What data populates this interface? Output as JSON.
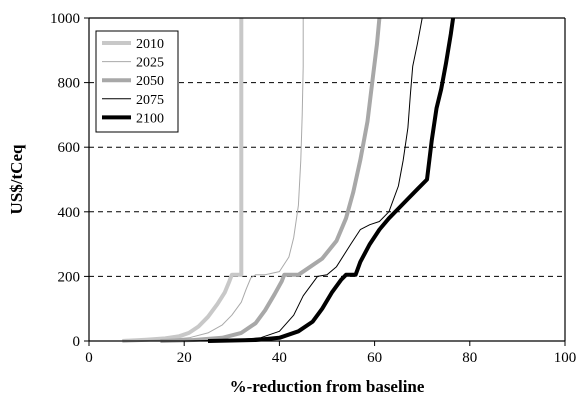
{
  "chart_data": {
    "type": "line",
    "title": "",
    "xlabel": "%-reduction from baseline",
    "ylabel": "US$/tCeq",
    "xlim": [
      0,
      100
    ],
    "ylim": [
      0,
      1000
    ],
    "x_ticks": [
      0,
      20,
      40,
      60,
      80,
      100
    ],
    "y_ticks": [
      0,
      200,
      400,
      600,
      800,
      1000
    ],
    "x_tick_labels": [
      "0",
      "20",
      "40",
      "60",
      "80",
      "100"
    ],
    "y_tick_labels": [
      "0",
      "200",
      "400",
      "600",
      "800",
      "1000"
    ],
    "grid": "horizontal dashed",
    "legend_position": "top-left",
    "series": [
      {
        "name": "2010",
        "color": "#c8c8c8",
        "width": 4,
        "points": [
          [
            7,
            0
          ],
          [
            12,
            4
          ],
          [
            16,
            8
          ],
          [
            19,
            15
          ],
          [
            21,
            25
          ],
          [
            23,
            45
          ],
          [
            25,
            75
          ],
          [
            27,
            115
          ],
          [
            28.5,
            150
          ],
          [
            29.5,
            185
          ],
          [
            30,
            205
          ],
          [
            32,
            205
          ],
          [
            32,
            1000
          ]
        ]
      },
      {
        "name": "2025",
        "color": "#aaaaaa",
        "width": 1,
        "points": [
          [
            10,
            0
          ],
          [
            16,
            4
          ],
          [
            21,
            10
          ],
          [
            25,
            25
          ],
          [
            28,
            50
          ],
          [
            30,
            80
          ],
          [
            32,
            120
          ],
          [
            33,
            160
          ],
          [
            34,
            195
          ],
          [
            35,
            205
          ],
          [
            37,
            205
          ],
          [
            40,
            215
          ],
          [
            42,
            260
          ],
          [
            43,
            320
          ],
          [
            44,
            420
          ],
          [
            44.5,
            560
          ],
          [
            44.8,
            700
          ],
          [
            45,
            850
          ],
          [
            45,
            1000
          ]
        ]
      },
      {
        "name": "2050",
        "color": "#a8a8a8",
        "width": 4,
        "points": [
          [
            15,
            0
          ],
          [
            22,
            3
          ],
          [
            28,
            10
          ],
          [
            32,
            25
          ],
          [
            35,
            55
          ],
          [
            37,
            95
          ],
          [
            39,
            145
          ],
          [
            40.5,
            185
          ],
          [
            41,
            205
          ],
          [
            44,
            205
          ],
          [
            46,
            225
          ],
          [
            49,
            255
          ],
          [
            52,
            310
          ],
          [
            54,
            380
          ],
          [
            55.5,
            460
          ],
          [
            57,
            560
          ],
          [
            58.5,
            680
          ],
          [
            59.5,
            800
          ],
          [
            60.5,
            920
          ],
          [
            61,
            1000
          ]
        ]
      },
      {
        "name": "2075",
        "color": "#000000",
        "width": 1,
        "points": [
          [
            20,
            0
          ],
          [
            30,
            3
          ],
          [
            36,
            10
          ],
          [
            40,
            30
          ],
          [
            43,
            80
          ],
          [
            45,
            140
          ],
          [
            47,
            180
          ],
          [
            48,
            200
          ],
          [
            50,
            205
          ],
          [
            52,
            230
          ],
          [
            55,
            300
          ],
          [
            57,
            345
          ],
          [
            59,
            360
          ],
          [
            61,
            370
          ],
          [
            63,
            400
          ],
          [
            65,
            480
          ],
          [
            66,
            560
          ],
          [
            67,
            660
          ],
          [
            67.5,
            760
          ],
          [
            68,
            850
          ],
          [
            69,
            920
          ],
          [
            70,
            1000
          ]
        ]
      },
      {
        "name": "2100",
        "color": "#000000",
        "width": 4,
        "points": [
          [
            25,
            0
          ],
          [
            35,
            3
          ],
          [
            40,
            10
          ],
          [
            44,
            30
          ],
          [
            47,
            60
          ],
          [
            49,
            100
          ],
          [
            51,
            150
          ],
          [
            53,
            190
          ],
          [
            54,
            205
          ],
          [
            56,
            205
          ],
          [
            57,
            245
          ],
          [
            59,
            300
          ],
          [
            61,
            345
          ],
          [
            63,
            380
          ],
          [
            65,
            410
          ],
          [
            67,
            440
          ],
          [
            69,
            470
          ],
          [
            71,
            500
          ],
          [
            72,
            620
          ],
          [
            73,
            720
          ],
          [
            74,
            780
          ],
          [
            75,
            860
          ],
          [
            76,
            950
          ],
          [
            76.5,
            1000
          ]
        ]
      }
    ]
  }
}
